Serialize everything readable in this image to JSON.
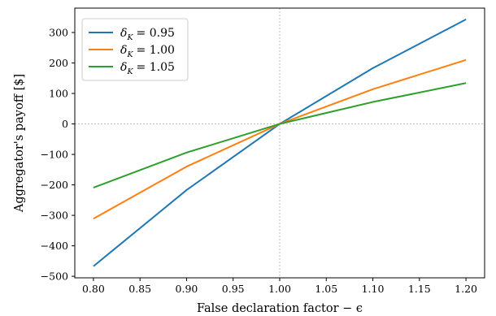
{
  "chart_data": {
    "type": "line",
    "x": [
      0.8,
      0.9,
      1.0,
      1.1,
      1.2
    ],
    "series": [
      {
        "name": "δ_K = 0.95",
        "legend": {
          "symbol": "δ",
          "sub": "K",
          "value": "= 0.95"
        },
        "color": "#1f77b4",
        "values": [
          -467,
          -217,
          0,
          183,
          343
        ]
      },
      {
        "name": "δ_K = 1.00",
        "legend": {
          "symbol": "δ",
          "sub": "K",
          "value": "= 1.00"
        },
        "color": "#ff7f0e",
        "values": [
          -311,
          -140,
          0,
          114,
          210
        ]
      },
      {
        "name": "δ_K = 1.05",
        "legend": {
          "symbol": "δ",
          "sub": "K",
          "value": "= 1.05"
        },
        "color": "#2ca02c",
        "values": [
          -209,
          -94,
          0,
          72,
          134
        ]
      }
    ],
    "xlabel": "False declaration factor − ϵ",
    "ylabel": "Aggregator's payoff [$]",
    "xlim": [
      0.78,
      1.22
    ],
    "ylim": [
      -505,
      380
    ],
    "xticks": [
      "0.80",
      "0.85",
      "0.90",
      "0.95",
      "1.00",
      "1.05",
      "1.10",
      "1.15",
      "1.20"
    ],
    "yticks": [
      "300",
      "200",
      "100",
      "0",
      "−100",
      "−200",
      "−300",
      "−400",
      "−500"
    ],
    "reference_lines": {
      "x": 1.0,
      "y": 0
    },
    "grid": false,
    "legend_position": "upper-left"
  }
}
